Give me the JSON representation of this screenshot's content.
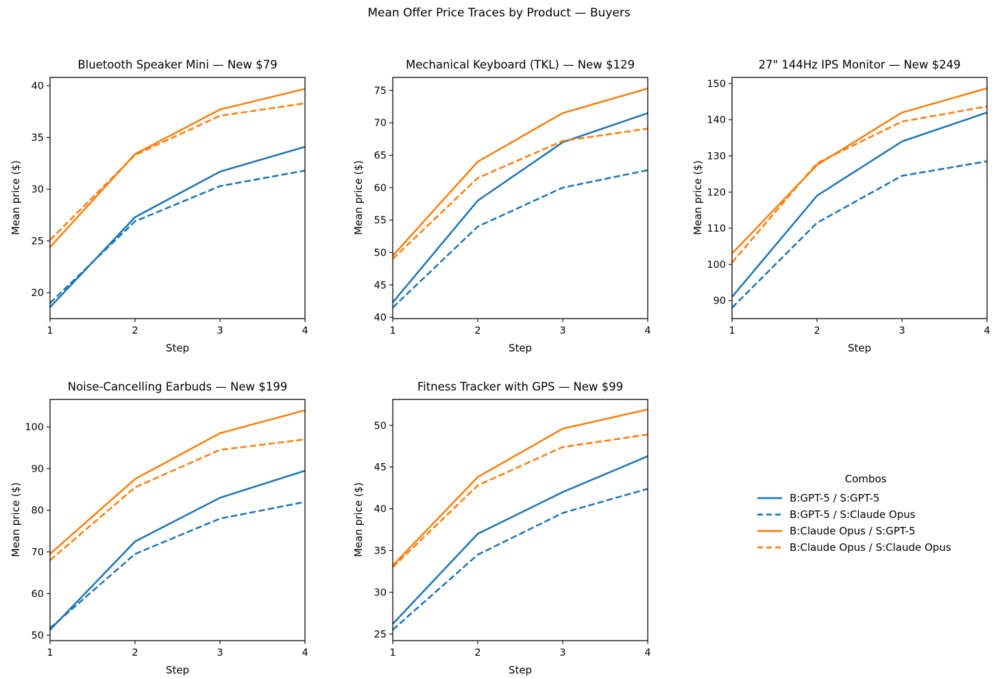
{
  "figure": {
    "suptitle": "Mean Offer Price Traces by Product — Buyers"
  },
  "colors": {
    "blue": "#1f77b4",
    "orange": "#ff7f0e",
    "axis": "#000000",
    "background": "#ffffff"
  },
  "legend": {
    "title": "Combos",
    "entries": [
      {
        "label": "B:GPT-5 / S:GPT-5",
        "color": "blue",
        "dash": false
      },
      {
        "label": "B:GPT-5 / S:Claude Opus",
        "color": "blue",
        "dash": true
      },
      {
        "label": "B:Claude Opus / S:GPT-5",
        "color": "orange",
        "dash": false
      },
      {
        "label": "B:Claude Opus / S:Claude Opus",
        "color": "orange",
        "dash": true
      }
    ]
  },
  "chart_data": [
    {
      "type": "line",
      "title": "Bluetooth Speaker Mini — New $79",
      "xlabel": "Step",
      "ylabel": "Mean price ($)",
      "x": [
        1,
        2,
        3,
        4
      ],
      "xlim": [
        1,
        4
      ],
      "ylim": [
        17.5,
        40.8
      ],
      "xticks": [
        1,
        2,
        3,
        4
      ],
      "yticks": [
        20,
        25,
        30,
        35,
        40
      ],
      "grid": false,
      "series": [
        {
          "name": "B:GPT-5 / S:GPT-5",
          "color": "blue",
          "dash": false,
          "values": [
            18.6,
            27.3,
            31.7,
            34.1
          ]
        },
        {
          "name": "B:GPT-5 / S:Claude Opus",
          "color": "blue",
          "dash": true,
          "values": [
            19.0,
            26.9,
            30.3,
            31.8
          ]
        },
        {
          "name": "B:Claude Opus / S:GPT-5",
          "color": "orange",
          "dash": false,
          "values": [
            24.4,
            33.4,
            37.7,
            39.7
          ]
        },
        {
          "name": "B:Claude Opus / S:Claude Opus",
          "color": "orange",
          "dash": true,
          "values": [
            25.1,
            33.3,
            37.1,
            38.3
          ]
        }
      ]
    },
    {
      "type": "line",
      "title": "Mechanical Keyboard (TKL) — New $129",
      "xlabel": "Step",
      "ylabel": "Mean price ($)",
      "x": [
        1,
        2,
        3,
        4
      ],
      "xlim": [
        1,
        4
      ],
      "ylim": [
        39.8,
        77.0
      ],
      "xticks": [
        1,
        2,
        3,
        4
      ],
      "yticks": [
        40,
        45,
        50,
        55,
        60,
        65,
        70,
        75
      ],
      "grid": false,
      "series": [
        {
          "name": "B:GPT-5 / S:GPT-5",
          "color": "blue",
          "dash": false,
          "values": [
            42.3,
            58.0,
            67.0,
            71.5
          ]
        },
        {
          "name": "B:GPT-5 / S:Claude Opus",
          "color": "blue",
          "dash": true,
          "values": [
            41.5,
            54.0,
            60.0,
            62.7
          ]
        },
        {
          "name": "B:Claude Opus / S:GPT-5",
          "color": "orange",
          "dash": false,
          "values": [
            49.5,
            64.0,
            71.5,
            75.3
          ]
        },
        {
          "name": "B:Claude Opus / S:Claude Opus",
          "color": "orange",
          "dash": true,
          "values": [
            49.0,
            61.5,
            67.2,
            69.1
          ]
        }
      ]
    },
    {
      "type": "line",
      "title": "27\" 144Hz IPS Monitor — New $249",
      "xlabel": "Step",
      "ylabel": "Mean price ($)",
      "x": [
        1,
        2,
        3,
        4
      ],
      "xlim": [
        1,
        4
      ],
      "ylim": [
        85.0,
        151.7
      ],
      "xticks": [
        1,
        2,
        3,
        4
      ],
      "yticks": [
        90,
        100,
        110,
        120,
        130,
        140,
        150
      ],
      "grid": false,
      "series": [
        {
          "name": "B:GPT-5 / S:GPT-5",
          "color": "blue",
          "dash": false,
          "values": [
            91.0,
            119.0,
            134.0,
            142.0
          ]
        },
        {
          "name": "B:GPT-5 / S:Claude Opus",
          "color": "blue",
          "dash": true,
          "values": [
            88.0,
            111.5,
            124.5,
            128.5
          ]
        },
        {
          "name": "B:Claude Opus / S:GPT-5",
          "color": "orange",
          "dash": false,
          "values": [
            103.0,
            127.5,
            142.0,
            148.7
          ]
        },
        {
          "name": "B:Claude Opus / S:Claude Opus",
          "color": "orange",
          "dash": true,
          "values": [
            100.5,
            128.0,
            139.5,
            143.7
          ]
        }
      ]
    },
    {
      "type": "line",
      "title": "Noise-Cancelling Earbuds — New $199",
      "xlabel": "Step",
      "ylabel": "Mean price ($)",
      "x": [
        1,
        2,
        3,
        4
      ],
      "xlim": [
        1,
        4
      ],
      "ylim": [
        48.7,
        106.6
      ],
      "xticks": [
        1,
        2,
        3,
        4
      ],
      "yticks": [
        50,
        60,
        70,
        80,
        90,
        100
      ],
      "grid": false,
      "series": [
        {
          "name": "B:GPT-5 / S:GPT-5",
          "color": "blue",
          "dash": false,
          "values": [
            51.3,
            72.5,
            83.0,
            89.5
          ]
        },
        {
          "name": "B:GPT-5 / S:Claude Opus",
          "color": "blue",
          "dash": true,
          "values": [
            51.7,
            69.5,
            78.0,
            82.0
          ]
        },
        {
          "name": "B:Claude Opus / S:GPT-5",
          "color": "orange",
          "dash": false,
          "values": [
            69.5,
            87.5,
            98.5,
            104.0
          ]
        },
        {
          "name": "B:Claude Opus / S:Claude Opus",
          "color": "orange",
          "dash": true,
          "values": [
            68.0,
            85.5,
            94.5,
            97.0
          ]
        }
      ]
    },
    {
      "type": "line",
      "title": "Fitness Tracker with GPS — New $99",
      "xlabel": "Step",
      "ylabel": "Mean price ($)",
      "x": [
        1,
        2,
        3,
        4
      ],
      "xlim": [
        1,
        4
      ],
      "ylim": [
        24.2,
        53.1
      ],
      "xticks": [
        1,
        2,
        3,
        4
      ],
      "yticks": [
        25,
        30,
        35,
        40,
        45,
        50
      ],
      "grid": false,
      "series": [
        {
          "name": "B:GPT-5 / S:GPT-5",
          "color": "blue",
          "dash": false,
          "values": [
            26.2,
            37.0,
            42.0,
            46.3
          ]
        },
        {
          "name": "B:GPT-5 / S:Claude Opus",
          "color": "blue",
          "dash": true,
          "values": [
            25.5,
            34.5,
            39.5,
            42.4
          ]
        },
        {
          "name": "B:Claude Opus / S:GPT-5",
          "color": "orange",
          "dash": false,
          "values": [
            33.2,
            43.8,
            49.6,
            51.9
          ]
        },
        {
          "name": "B:Claude Opus / S:Claude Opus",
          "color": "orange",
          "dash": true,
          "values": [
            33.0,
            42.8,
            47.4,
            48.9
          ]
        }
      ]
    }
  ]
}
